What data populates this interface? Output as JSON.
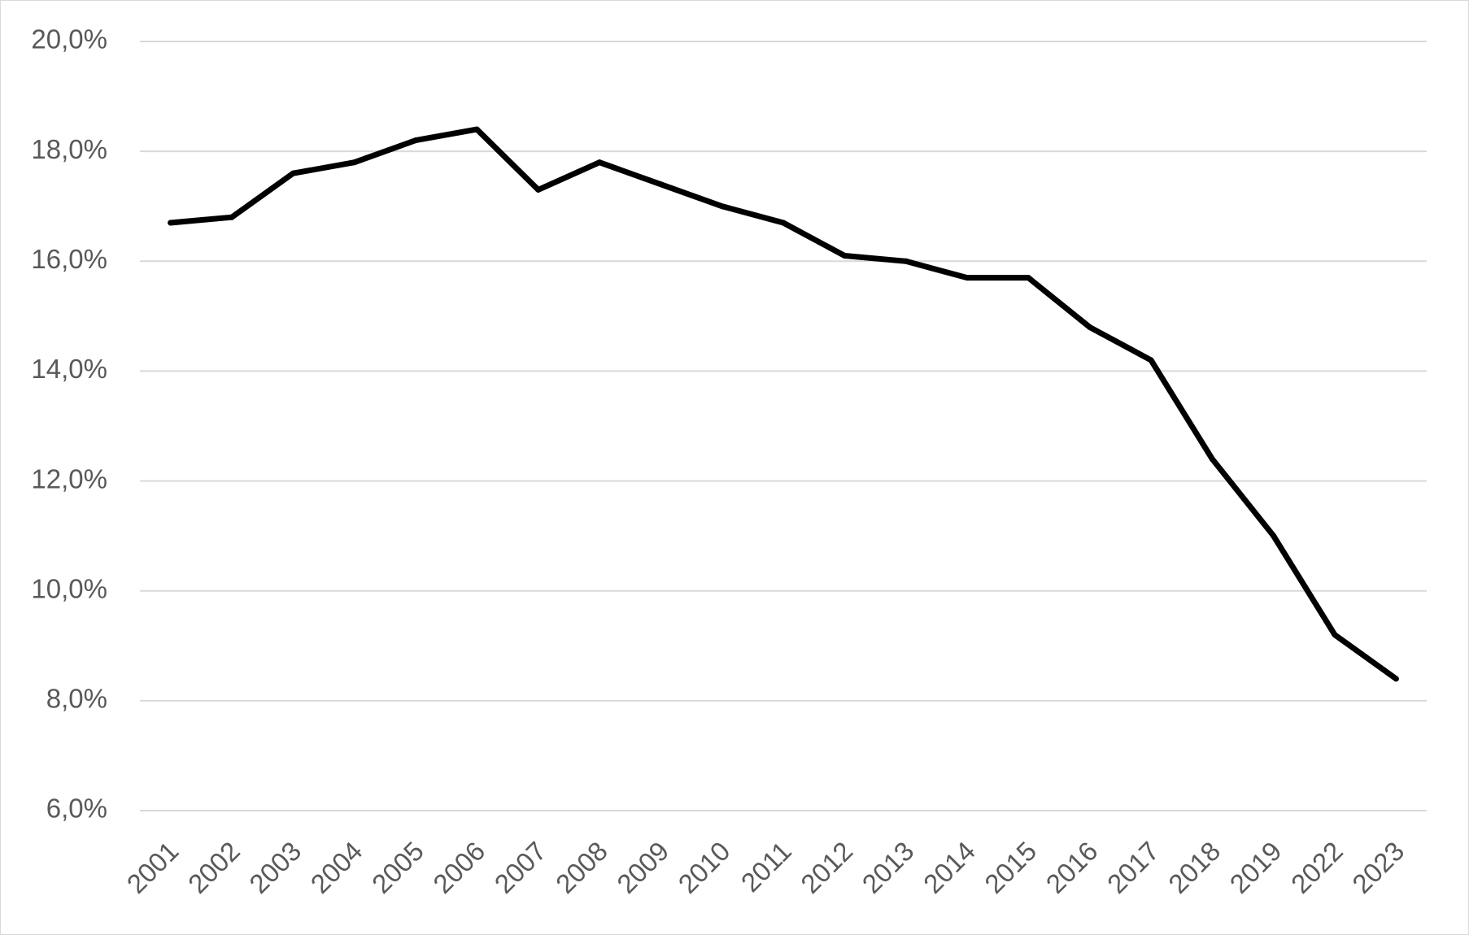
{
  "chart_data": {
    "type": "line",
    "title": "",
    "xlabel": "",
    "ylabel": "",
    "categories": [
      "2001",
      "2002",
      "2003",
      "2004",
      "2005",
      "2006",
      "2007",
      "2008",
      "2009",
      "2010",
      "2011",
      "2012",
      "2013",
      "2014",
      "2015",
      "2016",
      "2017",
      "2018",
      "2019",
      "2022",
      "2023"
    ],
    "series": [
      {
        "color": "#000000",
        "values": [
          16.7,
          16.8,
          17.6,
          17.8,
          18.2,
          18.4,
          17.3,
          17.8,
          17.4,
          17.0,
          16.7,
          16.1,
          16.0,
          15.7,
          15.7,
          14.8,
          14.2,
          12.4,
          11.0,
          9.2,
          8.4
        ]
      }
    ],
    "ylim": [
      6.0,
      20.0
    ],
    "yticks": [
      6.0,
      8.0,
      10.0,
      12.0,
      14.0,
      16.0,
      18.0,
      20.0
    ],
    "ytick_labels": [
      "6,0%",
      "8,0%",
      "10,0%",
      "12,0%",
      "14,0%",
      "16,0%",
      "18,0%",
      "20,0%"
    ],
    "grid": true,
    "legend": "none"
  }
}
